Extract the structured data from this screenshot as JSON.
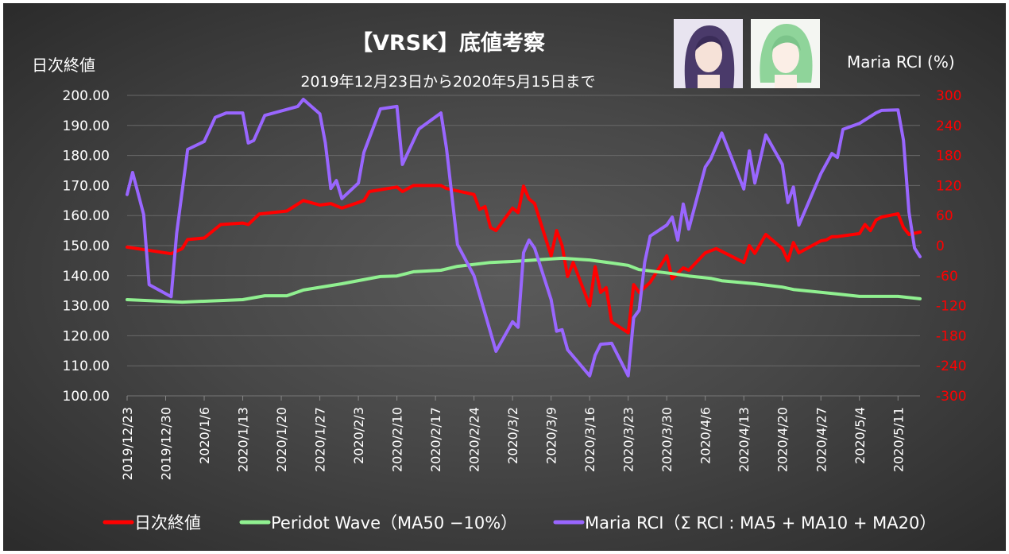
{
  "chart_data": {
    "type": "line",
    "title": "【VRSK】底値考察",
    "subtitle": "2019年12月23日から2020年5月15日まで",
    "ylabel_left": "日次終値",
    "ylabel_right": "Maria RCI (%)",
    "ylim_left": [
      100,
      200
    ],
    "ylim_right": [
      -300,
      300
    ],
    "yticks_left": [
      "100.00",
      "110.00",
      "120.00",
      "130.00",
      "140.00",
      "150.00",
      "160.00",
      "170.00",
      "180.00",
      "190.00",
      "200.00"
    ],
    "yticks_right": [
      "-300",
      "-240",
      "-180",
      "-120",
      "-60",
      "0",
      "60",
      "120",
      "180",
      "240",
      "300"
    ],
    "right_tick_color": "#ff0000",
    "xlim": [
      "2019-12-23",
      "2020-05-15"
    ],
    "xticks": [
      "2019/12/23",
      "2019/12/30",
      "2020/1/6",
      "2020/1/13",
      "2020/1/20",
      "2020/1/27",
      "2020/2/3",
      "2020/2/10",
      "2020/2/17",
      "2020/2/24",
      "2020/3/2",
      "2020/3/9",
      "2020/3/16",
      "2020/3/23",
      "2020/3/30",
      "2020/4/6",
      "2020/4/13",
      "2020/4/20",
      "2020/4/27",
      "2020/5/4",
      "2020/5/11"
    ],
    "grid": true,
    "legend_position": "bottom",
    "series": [
      {
        "name": "日次終値",
        "axis": "left",
        "color": "#ff0000",
        "points": [
          [
            "2019-12-23",
            149.5
          ],
          [
            "2019-12-31",
            147.3
          ],
          [
            "2020-01-02",
            149
          ],
          [
            "2020-01-03",
            152
          ],
          [
            "2020-01-06",
            152.5
          ],
          [
            "2020-01-09",
            157
          ],
          [
            "2020-01-13",
            157.5
          ],
          [
            "2020-01-14",
            157
          ],
          [
            "2020-01-16",
            160.5
          ],
          [
            "2020-01-21",
            161.5
          ],
          [
            "2020-01-24",
            165
          ],
          [
            "2020-01-27",
            163.5
          ],
          [
            "2020-01-29",
            164
          ],
          [
            "2020-01-31",
            162.5
          ],
          [
            "2020-02-04",
            165
          ],
          [
            "2020-02-05",
            168
          ],
          [
            "2020-02-10",
            169.5
          ],
          [
            "2020-02-11",
            168
          ],
          [
            "2020-02-13",
            170
          ],
          [
            "2020-02-18",
            170
          ],
          [
            "2020-02-19",
            169
          ],
          [
            "2020-02-24",
            167
          ],
          [
            "2020-02-25",
            162
          ],
          [
            "2020-02-26",
            163
          ],
          [
            "2020-02-27",
            156
          ],
          [
            "2020-02-28",
            155
          ],
          [
            "2020-03-02",
            162.5
          ],
          [
            "2020-03-03",
            161
          ],
          [
            "2020-03-04",
            169.8
          ],
          [
            "2020-03-05",
            165.5
          ],
          [
            "2020-03-06",
            164
          ],
          [
            "2020-03-09",
            146.6
          ],
          [
            "2020-03-10",
            155
          ],
          [
            "2020-03-11",
            150
          ],
          [
            "2020-03-12",
            139.7
          ],
          [
            "2020-03-13",
            144.4
          ],
          [
            "2020-03-16",
            130
          ],
          [
            "2020-03-17",
            143
          ],
          [
            "2020-03-18",
            134.4
          ],
          [
            "2020-03-19",
            136
          ],
          [
            "2020-03-20",
            124.6
          ],
          [
            "2020-03-23",
            121
          ],
          [
            "2020-03-24",
            137
          ],
          [
            "2020-03-25",
            134.4
          ],
          [
            "2020-03-27",
            137.8
          ],
          [
            "2020-03-30",
            146.6
          ],
          [
            "2020-03-31",
            139
          ],
          [
            "2020-04-02",
            142.6
          ],
          [
            "2020-04-03",
            141.8
          ],
          [
            "2020-04-06",
            147.6
          ],
          [
            "2020-04-08",
            149
          ],
          [
            "2020-04-13",
            144.4
          ],
          [
            "2020-04-14",
            150
          ],
          [
            "2020-04-15",
            147.4
          ],
          [
            "2020-04-17",
            153.7
          ],
          [
            "2020-04-20",
            149
          ],
          [
            "2020-04-21",
            145
          ],
          [
            "2020-04-22",
            151
          ],
          [
            "2020-04-23",
            147.6
          ],
          [
            "2020-04-27",
            151.6
          ],
          [
            "2020-04-28",
            151.9
          ],
          [
            "2020-04-29",
            153
          ],
          [
            "2020-04-30",
            153
          ],
          [
            "2020-05-04",
            154
          ],
          [
            "2020-05-05",
            157
          ],
          [
            "2020-05-06",
            155
          ],
          [
            "2020-05-07",
            158.5
          ],
          [
            "2020-05-08",
            159.5
          ],
          [
            "2020-05-11",
            160.6
          ],
          [
            "2020-05-12",
            156
          ],
          [
            "2020-05-13",
            153.7
          ],
          [
            "2020-05-15",
            154.5
          ]
        ]
      },
      {
        "name": "Peridot Wave（MA50 −10%）",
        "axis": "left",
        "color": "#90f090",
        "points": [
          [
            "2019-12-23",
            132
          ],
          [
            "2020-01-02",
            131.2
          ],
          [
            "2020-01-13",
            132
          ],
          [
            "2020-01-17",
            133.3
          ],
          [
            "2020-01-21",
            133.3
          ],
          [
            "2020-01-24",
            135.2
          ],
          [
            "2020-01-31",
            137.3
          ],
          [
            "2020-02-07",
            139.7
          ],
          [
            "2020-02-10",
            139.9
          ],
          [
            "2020-02-13",
            141.3
          ],
          [
            "2020-02-18",
            141.8
          ],
          [
            "2020-02-21",
            143.1
          ],
          [
            "2020-02-27",
            144.4
          ],
          [
            "2020-03-02",
            144.7
          ],
          [
            "2020-03-06",
            145.2
          ],
          [
            "2020-03-11",
            145.8
          ],
          [
            "2020-03-16",
            145.2
          ],
          [
            "2020-03-20",
            144.2
          ],
          [
            "2020-03-23",
            143.4
          ],
          [
            "2020-03-25",
            142
          ],
          [
            "2020-03-31",
            140.7
          ],
          [
            "2020-04-03",
            139.9
          ],
          [
            "2020-04-07",
            139.1
          ],
          [
            "2020-04-09",
            138.3
          ],
          [
            "2020-04-15",
            137.3
          ],
          [
            "2020-04-20",
            136.2
          ],
          [
            "2020-04-22",
            135.4
          ],
          [
            "2020-04-30",
            133.9
          ],
          [
            "2020-05-04",
            133.1
          ],
          [
            "2020-05-11",
            133.1
          ],
          [
            "2020-05-15",
            132.3
          ]
        ]
      },
      {
        "name": "Maria RCI（Σ RCI : MA5 + MA10 + MA20）",
        "axis": "right",
        "color": "#9966ff",
        "points": [
          [
            "2019-12-23",
            102
          ],
          [
            "2019-12-24",
            146
          ],
          [
            "2019-12-26",
            62
          ],
          [
            "2019-12-27",
            -78
          ],
          [
            "2019-12-31",
            -102
          ],
          [
            "2020-01-01",
            25
          ],
          [
            "2020-01-03",
            192
          ],
          [
            "2020-01-06",
            208
          ],
          [
            "2020-01-08",
            256
          ],
          [
            "2020-01-10",
            265
          ],
          [
            "2020-01-13",
            265
          ],
          [
            "2020-01-14",
            205
          ],
          [
            "2020-01-15",
            210
          ],
          [
            "2020-01-17",
            260
          ],
          [
            "2020-01-23",
            278
          ],
          [
            "2020-01-24",
            292
          ],
          [
            "2020-01-27",
            263
          ],
          [
            "2020-01-28",
            205
          ],
          [
            "2020-01-29",
            114
          ],
          [
            "2020-01-30",
            130
          ],
          [
            "2020-01-31",
            94
          ],
          [
            "2020-02-03",
            125
          ],
          [
            "2020-02-04",
            186
          ],
          [
            "2020-02-07",
            273
          ],
          [
            "2020-02-10",
            278
          ],
          [
            "2020-02-11",
            162
          ],
          [
            "2020-02-12",
            186
          ],
          [
            "2020-02-14",
            233
          ],
          [
            "2020-02-18",
            265
          ],
          [
            "2020-02-19",
            194
          ],
          [
            "2020-02-21",
            2
          ],
          [
            "2020-02-24",
            -60
          ],
          [
            "2020-02-28",
            -211
          ],
          [
            "2020-03-02",
            -152
          ],
          [
            "2020-03-03",
            -163
          ],
          [
            "2020-03-04",
            -14
          ],
          [
            "2020-03-05",
            11
          ],
          [
            "2020-03-06",
            -5
          ],
          [
            "2020-03-09",
            -108
          ],
          [
            "2020-03-10",
            -171
          ],
          [
            "2020-03-11",
            -168
          ],
          [
            "2020-03-12",
            -208
          ],
          [
            "2020-03-16",
            -260
          ],
          [
            "2020-03-17",
            -219
          ],
          [
            "2020-03-18",
            -197
          ],
          [
            "2020-03-20",
            -195
          ],
          [
            "2020-03-23",
            -260
          ],
          [
            "2020-03-24",
            -144
          ],
          [
            "2020-03-25",
            -129
          ],
          [
            "2020-03-26",
            -33
          ],
          [
            "2020-03-27",
            19
          ],
          [
            "2020-03-30",
            41
          ],
          [
            "2020-03-31",
            57
          ],
          [
            "2020-04-01",
            11
          ],
          [
            "2020-04-02",
            83
          ],
          [
            "2020-04-03",
            33
          ],
          [
            "2020-04-06",
            157
          ],
          [
            "2020-04-07",
            173
          ],
          [
            "2020-04-09",
            225
          ],
          [
            "2020-04-13",
            113
          ],
          [
            "2020-04-14",
            189
          ],
          [
            "2020-04-15",
            125
          ],
          [
            "2020-04-17",
            221
          ],
          [
            "2020-04-20",
            162
          ],
          [
            "2020-04-21",
            86
          ],
          [
            "2020-04-22",
            117
          ],
          [
            "2020-04-23",
            41
          ],
          [
            "2020-04-27",
            144
          ],
          [
            "2020-04-29",
            184
          ],
          [
            "2020-04-30",
            176
          ],
          [
            "2020-05-01",
            232
          ],
          [
            "2020-05-04",
            244
          ],
          [
            "2020-05-07",
            265
          ],
          [
            "2020-05-08",
            270
          ],
          [
            "2020-05-11",
            271
          ],
          [
            "2020-05-12",
            210
          ],
          [
            "2020-05-13",
            67
          ],
          [
            "2020-05-14",
            -5
          ],
          [
            "2020-05-15",
            -22
          ]
        ]
      }
    ]
  },
  "avatars": [
    "purple-hair-character",
    "green-hair-character"
  ]
}
